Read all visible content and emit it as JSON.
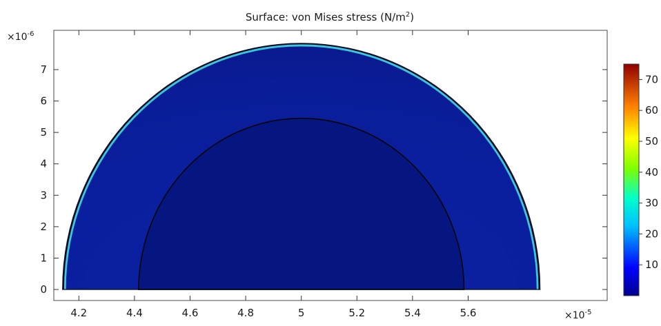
{
  "chart_data": {
    "type": "heatmap",
    "title": "Surface: von Mises stress (N/m²)",
    "title_main": "Surface: von Mises stress (N/m",
    "title_sup": "2",
    "title_end": ")",
    "x_multiplier": "×10",
    "x_multiplier_exp": "-5",
    "y_multiplier": "×10",
    "y_multiplier_exp": "-6",
    "xlim": [
      4.11,
      6.1
    ],
    "ylim": [
      -0.35,
      8.25
    ],
    "x_ticks": [
      4.2,
      4.4,
      4.6,
      4.8,
      5.0,
      5.2,
      5.4,
      5.6
    ],
    "x_tick_labels": [
      "4.2",
      "4.4",
      "4.6",
      "4.8",
      "5",
      "5.2",
      "5.4",
      "5.6"
    ],
    "y_ticks": [
      0,
      1,
      2,
      3,
      4,
      5,
      6,
      7
    ],
    "y_tick_labels": [
      "0",
      "1",
      "2",
      "3",
      "4",
      "5",
      "6",
      "7"
    ],
    "geometry": {
      "center_x": 5.0,
      "outer_radius_x": 0.86,
      "outer_radius_y": 7.85,
      "inner_radius_x": 0.585,
      "inner_radius_y": 5.45
    },
    "colorbar": {
      "labels": [
        "70",
        "60",
        "50",
        "40",
        "30",
        "20",
        "10"
      ],
      "values": [
        70,
        60,
        50,
        40,
        30,
        20,
        10
      ],
      "range": [
        0,
        75
      ],
      "colormap": "rainbow"
    },
    "colors": {
      "field": "#0a1fa0",
      "field_dark": "#061680",
      "rim_hot": "#3ec6d9",
      "rim_edge": "#0b0b2a",
      "frame": "#4a4a4a"
    }
  }
}
